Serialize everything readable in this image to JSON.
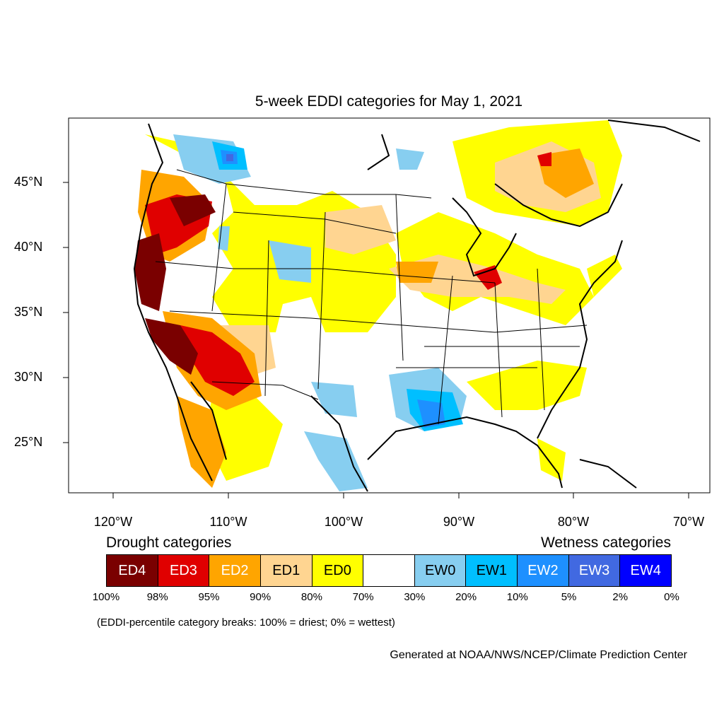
{
  "title": "5-week EDDI categories for May 1, 2021",
  "lat_labels": [
    "45°N",
    "40°N",
    "35°N",
    "30°N",
    "25°N"
  ],
  "lon_labels": [
    "120°W",
    "110°W",
    "100°W",
    "90°W",
    "80°W",
    "70°W"
  ],
  "legend": {
    "drought_title": "Drought categories",
    "wetness_title": "Wetness categories",
    "categories": [
      {
        "label": "ED4",
        "color": "#7a0000",
        "text_color": "#ffffff"
      },
      {
        "label": "ED3",
        "color": "#e00000",
        "text_color": "#ffffff"
      },
      {
        "label": "ED2",
        "color": "#ffa500",
        "text_color": "#ffffff"
      },
      {
        "label": "ED1",
        "color": "#ffd591",
        "text_color": "#000000"
      },
      {
        "label": "ED0",
        "color": "#ffff00",
        "text_color": "#000000"
      },
      {
        "label": "",
        "color": "#ffffff",
        "text_color": "#000000"
      },
      {
        "label": "EW0",
        "color": "#87cef0",
        "text_color": "#000000"
      },
      {
        "label": "EW1",
        "color": "#00bfff",
        "text_color": "#000000"
      },
      {
        "label": "EW2",
        "color": "#1e90ff",
        "text_color": "#ffffff"
      },
      {
        "label": "EW3",
        "color": "#4169e1",
        "text_color": "#ffffff"
      },
      {
        "label": "EW4",
        "color": "#0000ff",
        "text_color": "#ffffff"
      }
    ],
    "percent_breaks": [
      "100%",
      "98%",
      "95%",
      "90%",
      "80%",
      "70%",
      "30%",
      "20%",
      "10%",
      "5%",
      "2%",
      "0%"
    ]
  },
  "note": "(EDDI-percentile category breaks: 100% = driest; 0% = wettest)",
  "credit": "Generated at NOAA/NWS/NCEP/Climate Prediction Center"
}
